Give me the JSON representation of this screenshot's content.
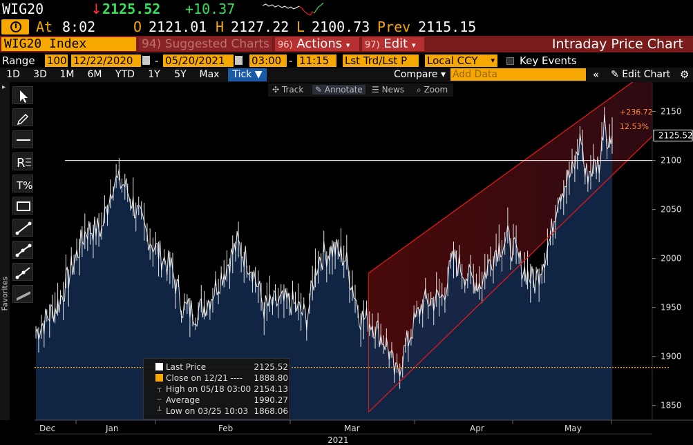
{
  "header": {
    "ticker": "WIG20",
    "arrow": "↓",
    "last_price": "2125.52",
    "change": "+10.37"
  },
  "quote_row": {
    "at_label": "At",
    "time": "8:02",
    "open_label": "O",
    "open": "2121.01",
    "high_label": "H",
    "high": "2127.22",
    "low_label": "L",
    "low": "2100.73",
    "prev_label": "Prev",
    "prev": "2115.15"
  },
  "command_bar": {
    "security": "WIG20 Index",
    "suggested_num": "94)",
    "suggested_label": "Suggested Charts",
    "actions_num": "96)",
    "actions_label": "Actions",
    "edit_num": "97)",
    "edit_label": "Edit",
    "title": "Intraday Price Chart"
  },
  "range_bar": {
    "range_label": "Range",
    "bars": "100",
    "start_date": "12/22/2020",
    "dash": "-",
    "end_date": "05/20/2021",
    "start_time": "03:00",
    "end_time": "11:15",
    "mode": "Lst Trd/Lst P",
    "currency": "Local CCY",
    "key_events": "Key Events"
  },
  "period_tabs": [
    "1D",
    "3D",
    "1M",
    "6M",
    "YTD",
    "1Y",
    "5Y",
    "Max",
    "Tick ▼"
  ],
  "active_tab": "Tick ▼",
  "toolbar_right": {
    "compare": "Compare ▾",
    "add_data_placeholder": "Add Data",
    "collapse": "«",
    "edit_chart": "Edit Chart",
    "settings": "⚙"
  },
  "left_toolbar": {
    "favorites": "Favorites",
    "tools": [
      "cursor-icon",
      "pencil-icon",
      "hline-icon",
      "text-tool-icon",
      "fib-icon",
      "rectangle-icon",
      "line-icon",
      "polyline-icon",
      "ray-icon",
      "channel-icon"
    ]
  },
  "annotate_bar": {
    "track": "Track",
    "annotate": "Annotate",
    "news": "News",
    "zoom": "Zoom"
  },
  "legend": {
    "last_price_label": "Last Price",
    "last_price_value": "2125.52",
    "close_label": "Close on 12/21 ----",
    "close_value": "1888.80",
    "high_label": "High on 05/18 03:00",
    "high_value": "2154.13",
    "average_label": "Average",
    "average_value": "1990.27",
    "low_label": "Low on 03/25 10:03",
    "low_value": "1868.06"
  },
  "annotation": {
    "change_abs": "+236.72",
    "change_pct": "12.53%",
    "last_tag": "2125.52"
  },
  "colors": {
    "orange": "#f7a800",
    "green": "#36e05a",
    "red": "#ff3333",
    "area_fill": "#12294a",
    "channel": "#e11a1a"
  },
  "chart_data": {
    "type": "area",
    "y_ticks": [
      "1850",
      "1900",
      "1950",
      "2000",
      "2050",
      "2100",
      "2150"
    ],
    "ylim": [
      1835,
      2180
    ],
    "x_month_labels": [
      "Dec",
      "Jan",
      "Feb",
      "Mar",
      "Apr",
      "May"
    ],
    "x_year_label": "2021",
    "reference_close": 1888.8,
    "horizontal_line": 2100,
    "series": [
      {
        "name": "Last Price",
        "points": [
          [
            "12/22",
            1925
          ],
          [
            "12/28",
            1955
          ],
          [
            "01/04",
            2030
          ],
          [
            "01/08",
            2030
          ],
          [
            "01/11",
            2080
          ],
          [
            "01/14",
            2075
          ],
          [
            "01/19",
            2030
          ],
          [
            "01/22",
            2010
          ],
          [
            "01/26",
            1990
          ],
          [
            "01/29",
            1950
          ],
          [
            "02/02",
            1945
          ],
          [
            "02/05",
            1960
          ],
          [
            "02/09",
            1990
          ],
          [
            "02/12",
            2015
          ],
          [
            "02/16",
            1990
          ],
          [
            "02/19",
            1950
          ],
          [
            "02/23",
            1955
          ],
          [
            "02/26",
            1955
          ],
          [
            "03/02",
            1940
          ],
          [
            "03/05",
            2000
          ],
          [
            "03/09",
            2010
          ],
          [
            "03/12",
            2000
          ],
          [
            "03/16",
            1940
          ],
          [
            "03/19",
            1935
          ],
          [
            "03/23",
            1910
          ],
          [
            "03/25",
            1880
          ],
          [
            "03/29",
            1925
          ],
          [
            "04/01",
            1955
          ],
          [
            "04/06",
            1960
          ],
          [
            "04/09",
            2000
          ],
          [
            "04/13",
            1980
          ],
          [
            "04/16",
            1975
          ],
          [
            "04/20",
            2010
          ],
          [
            "04/23",
            2020
          ],
          [
            "04/27",
            1990
          ],
          [
            "04/30",
            1975
          ],
          [
            "05/04",
            2020
          ],
          [
            "05/06",
            2065
          ],
          [
            "05/10",
            2090
          ],
          [
            "05/12",
            2125
          ],
          [
            "05/13",
            2085
          ],
          [
            "05/17",
            2100
          ],
          [
            "05/18",
            2150
          ],
          [
            "05/19",
            2115
          ],
          [
            "05/20",
            2125.52
          ]
        ]
      }
    ],
    "channel": {
      "upper": [
        [
          "03/18",
          1985
        ],
        [
          "05/20",
          2165
        ]
      ],
      "lower": [
        [
          "03/25",
          1870
        ],
        [
          "05/20",
          2085
        ]
      ]
    },
    "change_label": [
      "+236.72",
      "12.53%"
    ]
  }
}
